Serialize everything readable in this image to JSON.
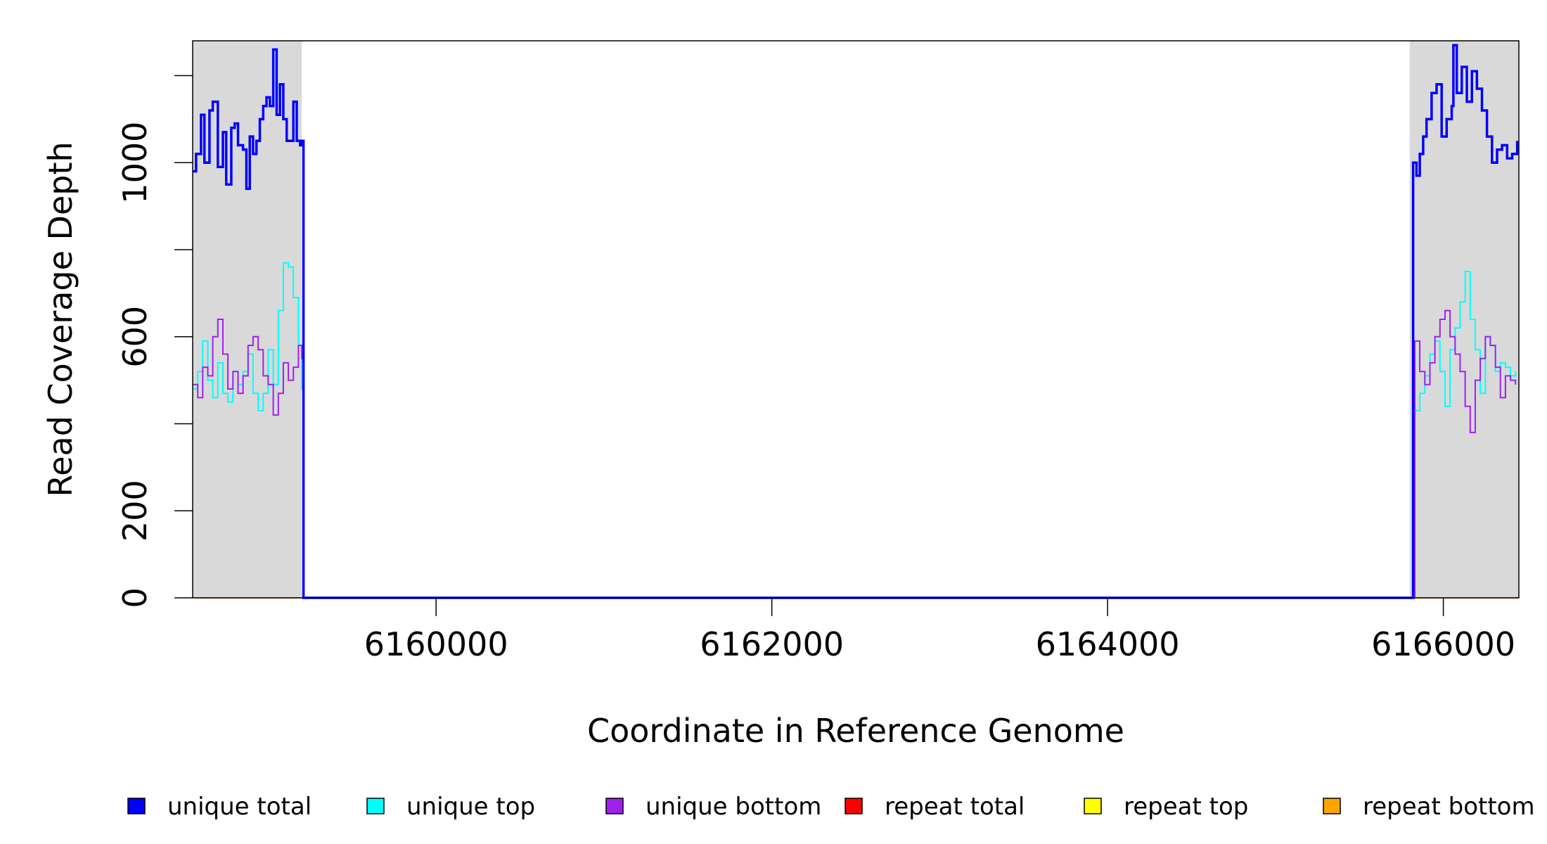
{
  "chart_data": {
    "type": "line",
    "xlabel": "Coordinate in Reference Genome",
    "ylabel": "Read Coverage Depth",
    "xlim": [
      6158550,
      6166450
    ],
    "ylim": [
      0,
      1280
    ],
    "x_ticks": [
      6160000,
      6162000,
      6164000,
      6166000
    ],
    "x_tick_labels": [
      "6160000",
      "6162000",
      "6164000",
      "6166000"
    ],
    "y_ticks": [
      0,
      200,
      400,
      600,
      800,
      1000,
      1200
    ],
    "y_tick_labels": [
      "0",
      "200",
      "",
      "600",
      "",
      "1000",
      ""
    ],
    "grid": false,
    "shaded_regions": [
      {
        "x_start": 6158550,
        "x_end": 6159200,
        "color": "#d9d9d9"
      },
      {
        "x_start": 6165800,
        "x_end": 6166450,
        "color": "#d9d9d9"
      }
    ],
    "legend_position": "bottom",
    "series": [
      {
        "name": "unique total",
        "color": "#0000ff",
        "x": [
          6158550,
          6158570,
          6158600,
          6158620,
          6158650,
          6158670,
          6158700,
          6158730,
          6158750,
          6158780,
          6158800,
          6158820,
          6158850,
          6158870,
          6158890,
          6158910,
          6158930,
          6158950,
          6158970,
          6158990,
          6159010,
          6159030,
          6159050,
          6159070,
          6159090,
          6159110,
          6159130,
          6159150,
          6159170,
          6159190,
          6159200,
          6159210,
          6165800,
          6165820,
          6165840,
          6165860,
          6165880,
          6165900,
          6165930,
          6165960,
          6165990,
          6166020,
          6166050,
          6166060,
          6166080,
          6166110,
          6166140,
          6166170,
          6166200,
          6166230,
          6166260,
          6166290,
          6166320,
          6166350,
          6166380,
          6166410,
          6166440
        ],
        "y": [
          980,
          1020,
          1110,
          1000,
          1120,
          1140,
          990,
          1070,
          950,
          1080,
          1090,
          1040,
          1030,
          940,
          1060,
          1020,
          1050,
          1100,
          1130,
          1150,
          1130,
          1260,
          1110,
          1180,
          1100,
          1050,
          1050,
          1140,
          1050,
          1040,
          1050,
          0,
          0,
          1000,
          970,
          1020,
          1060,
          1100,
          1160,
          1180,
          1060,
          1100,
          1130,
          1270,
          1160,
          1220,
          1140,
          1210,
          1170,
          1120,
          1060,
          1000,
          1030,
          1040,
          1010,
          1020,
          1050
        ]
      },
      {
        "name": "unique top",
        "color": "#00ffff",
        "x": [
          6158550,
          6158580,
          6158610,
          6158640,
          6158670,
          6158700,
          6158730,
          6158760,
          6158790,
          6158820,
          6158850,
          6158880,
          6158910,
          6158940,
          6158970,
          6159000,
          6159030,
          6159060,
          6159090,
          6159120,
          6159150,
          6159180,
          6159200,
          6159210,
          6165800,
          6165830,
          6165860,
          6165890,
          6165920,
          6165950,
          6165980,
          6166010,
          6166040,
          6166070,
          6166100,
          6166130,
          6166160,
          6166190,
          6166220,
          6166250,
          6166280,
          6166310,
          6166340,
          6166370,
          6166400,
          6166430
        ],
        "y": [
          480,
          520,
          590,
          500,
          460,
          540,
          470,
          450,
          520,
          490,
          520,
          560,
          470,
          430,
          470,
          570,
          490,
          660,
          770,
          760,
          690,
          580,
          480,
          0,
          0,
          430,
          470,
          510,
          560,
          590,
          520,
          440,
          570,
          620,
          680,
          750,
          640,
          570,
          470,
          600,
          580,
          520,
          540,
          530,
          510,
          520
        ]
      },
      {
        "name": "unique bottom",
        "color": "#a020f0",
        "x": [
          6158550,
          6158580,
          6158610,
          6158640,
          6158670,
          6158700,
          6158730,
          6158760,
          6158790,
          6158820,
          6158850,
          6158880,
          6158910,
          6158940,
          6158970,
          6159000,
          6159030,
          6159060,
          6159090,
          6159120,
          6159150,
          6159180,
          6159200,
          6159210,
          6165800,
          6165830,
          6165860,
          6165890,
          6165920,
          6165950,
          6165980,
          6166010,
          6166040,
          6166070,
          6166100,
          6166130,
          6166160,
          6166190,
          6166220,
          6166250,
          6166280,
          6166310,
          6166340,
          6166370,
          6166400,
          6166430
        ],
        "y": [
          490,
          460,
          530,
          510,
          600,
          640,
          560,
          480,
          520,
          470,
          510,
          580,
          600,
          570,
          510,
          490,
          420,
          470,
          540,
          500,
          530,
          580,
          550,
          0,
          0,
          590,
          520,
          490,
          540,
          600,
          640,
          660,
          600,
          560,
          520,
          440,
          380,
          500,
          550,
          600,
          580,
          530,
          460,
          510,
          500,
          490
        ]
      },
      {
        "name": "repeat total",
        "color": "#ff0000",
        "x": [
          6158550,
          6166450
        ],
        "y": [
          0,
          0
        ]
      },
      {
        "name": "repeat top",
        "color": "#ffff00",
        "x": [
          6158550,
          6166450
        ],
        "y": [
          0,
          0
        ]
      },
      {
        "name": "repeat bottom",
        "color": "#ffa500",
        "x": [
          6158550,
          6166450
        ],
        "y": [
          0,
          0
        ]
      }
    ]
  }
}
